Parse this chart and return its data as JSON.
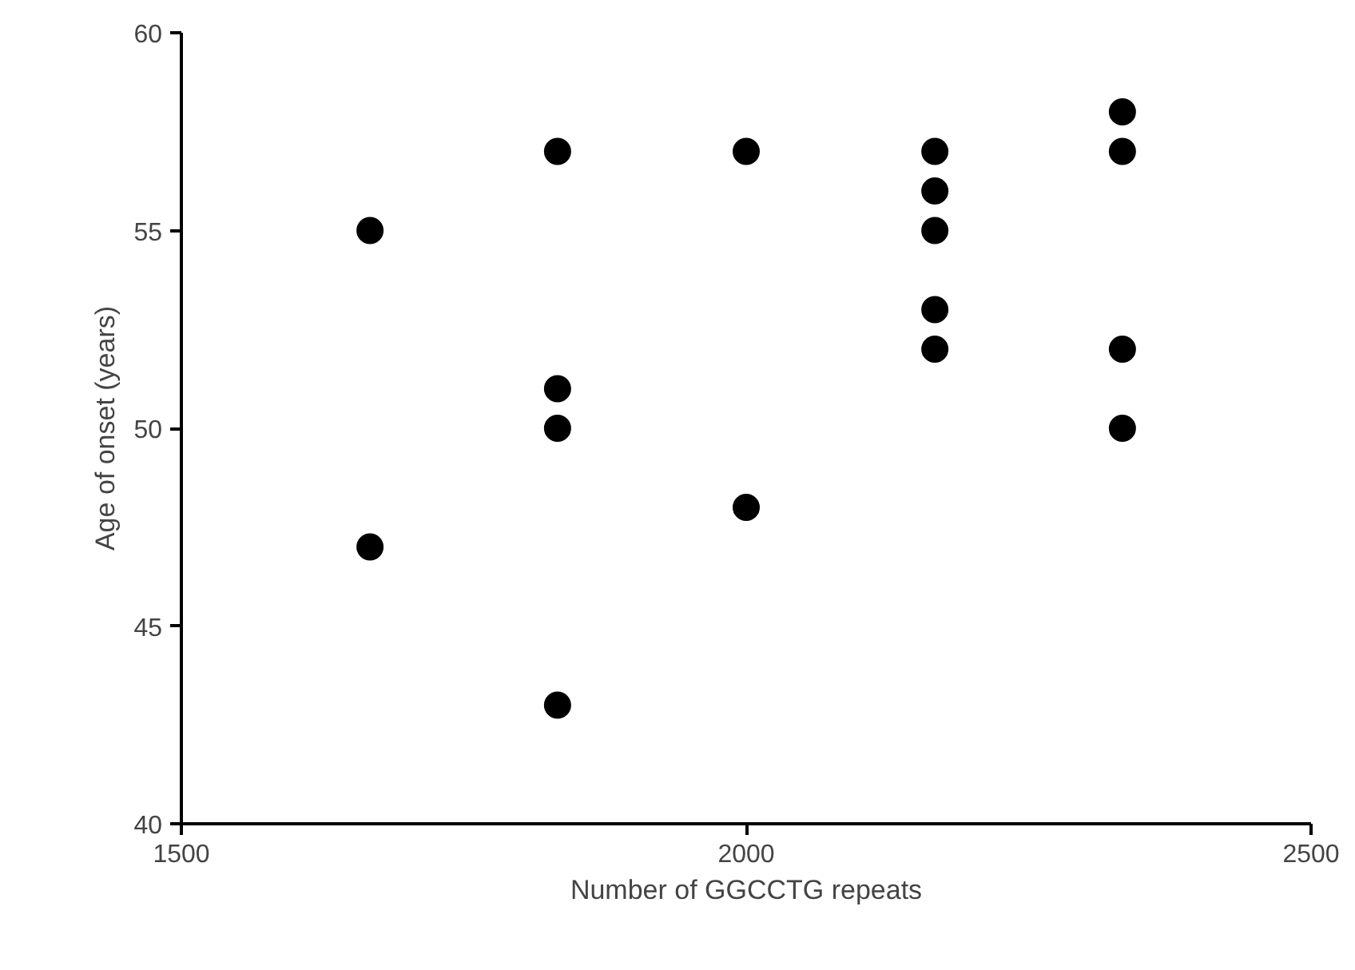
{
  "chart_data": {
    "type": "scatter",
    "xlabel": "Number of GGCCTG repeats",
    "ylabel": "Age of onset (years)",
    "x": [
      1667,
      1667,
      1833,
      1833,
      1833,
      1833,
      2000,
      2000,
      2167,
      2167,
      2167,
      2167,
      2167,
      2333,
      2333,
      2333,
      2333
    ],
    "values": [
      55,
      47,
      57,
      51,
      50,
      43,
      57,
      48,
      57,
      56,
      55,
      53,
      52,
      58,
      57,
      52,
      50
    ],
    "color": "#000000",
    "marker": "circle",
    "xlim": [
      1500,
      2500
    ],
    "xticks": [
      1500,
      2000,
      2500
    ],
    "ylim": [
      40,
      60
    ],
    "yticks": [
      40,
      45,
      50,
      55,
      60
    ],
    "grid": false
  }
}
